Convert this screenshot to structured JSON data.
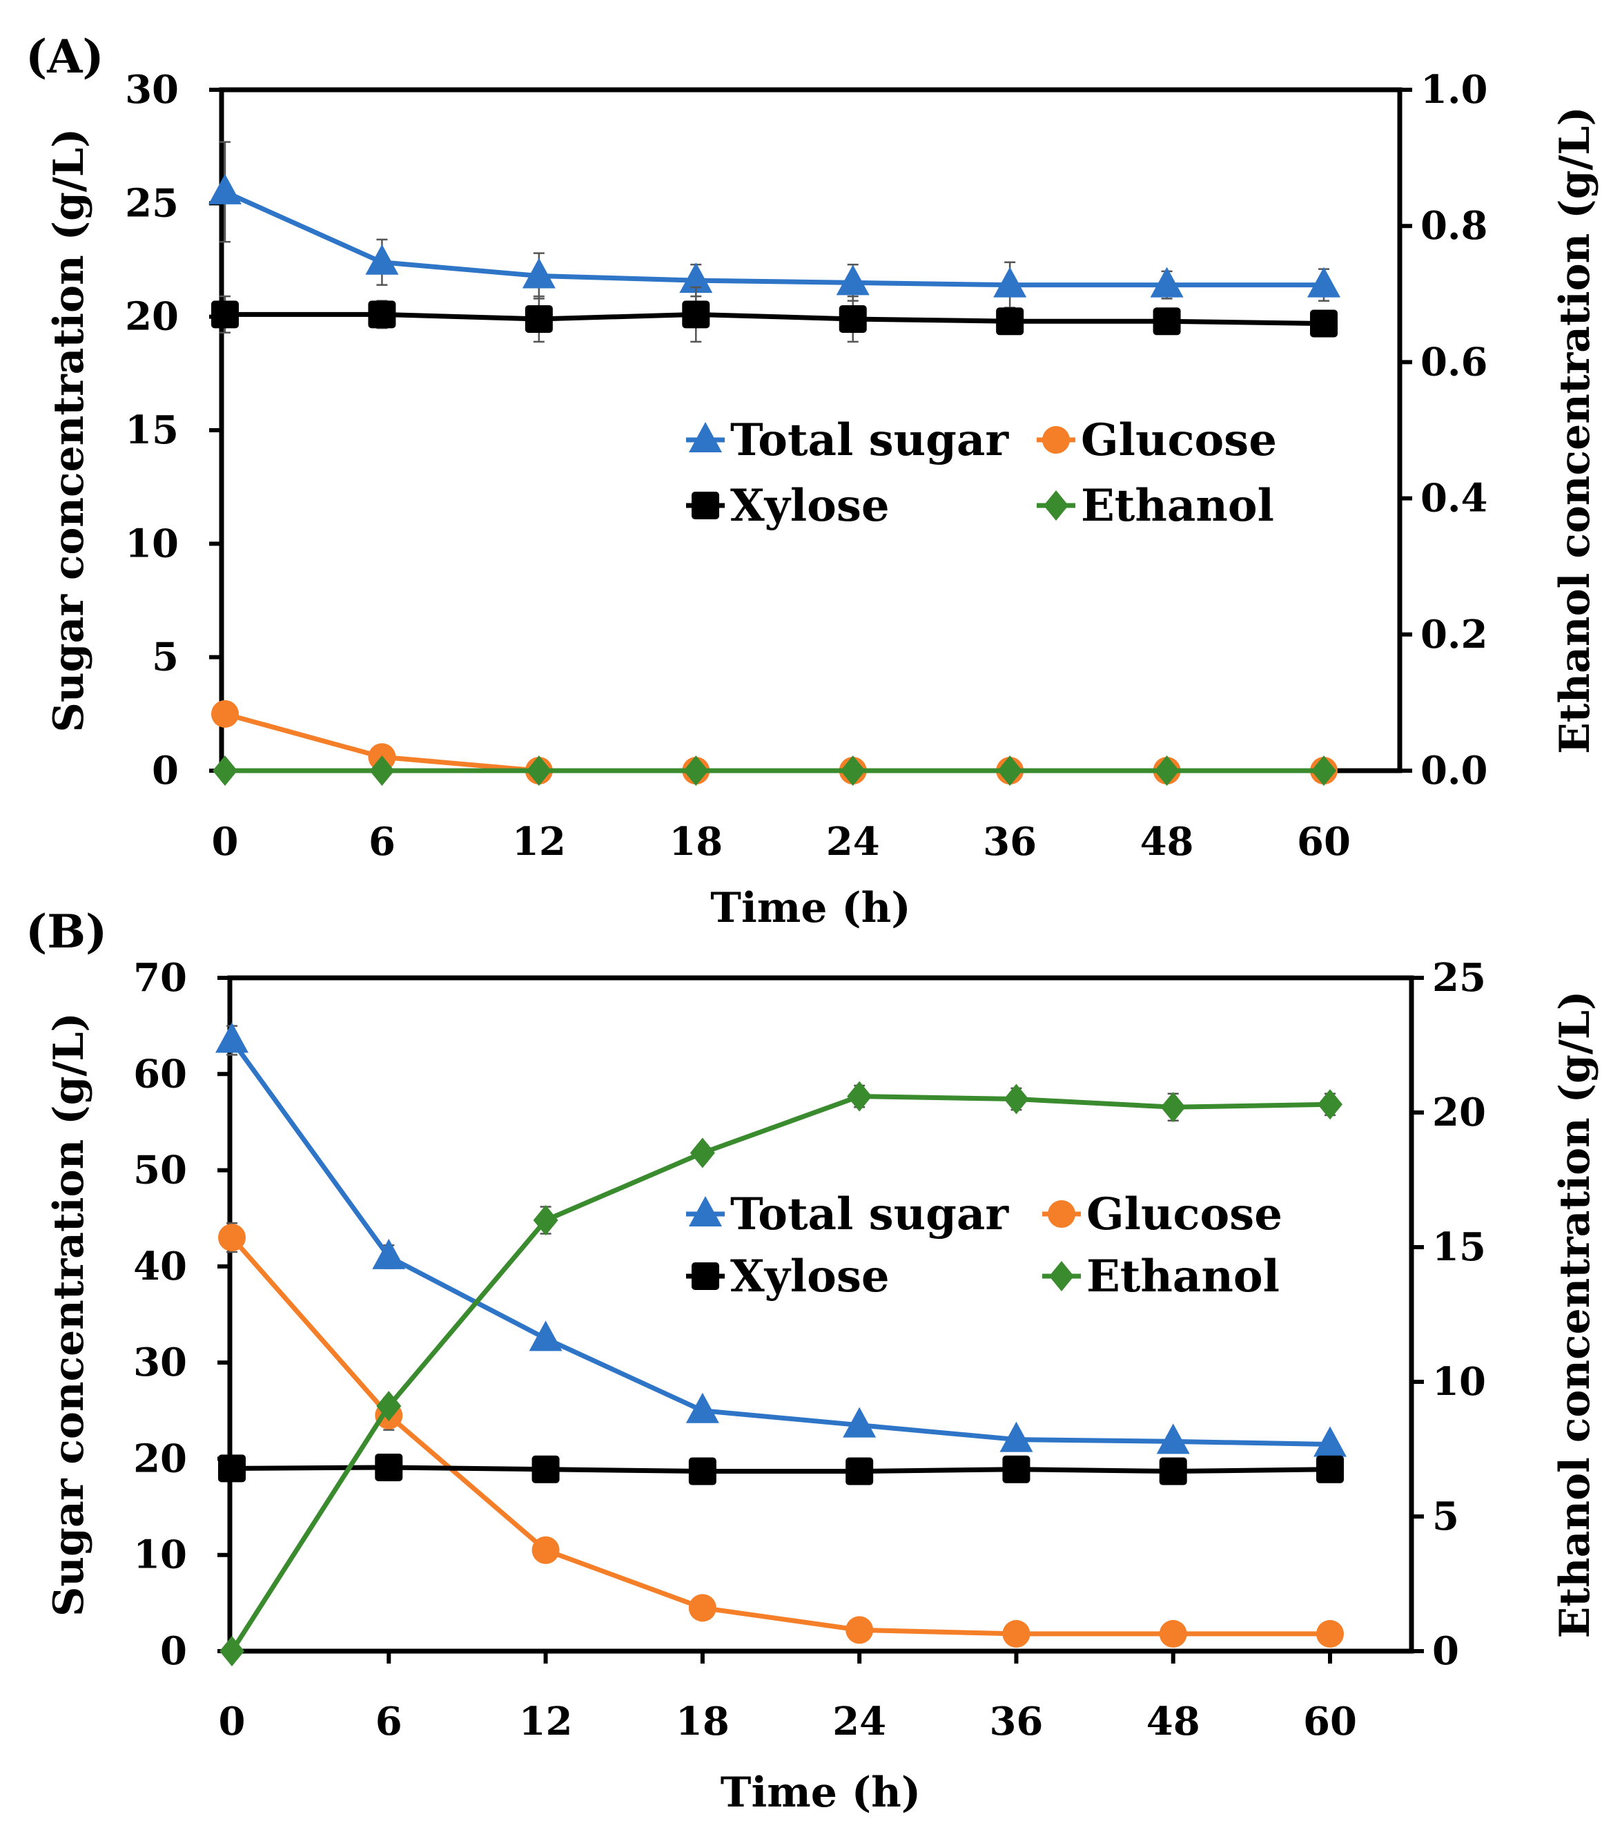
{
  "chart_data": [
    {
      "panel_label": "(A)",
      "type": "line",
      "categories": [
        "0",
        "6",
        "12",
        "18",
        "24",
        "36",
        "48",
        "60"
      ],
      "xlabel": "Time (h)",
      "ylabel": "Sugar concentration (g/L)",
      "y2label": "Ethanol concentration (g/L)",
      "ylim": [
        0,
        30
      ],
      "yticks": [
        "0",
        "5",
        "10",
        "15",
        "20",
        "25",
        "30"
      ],
      "y2lim": [
        0,
        1.0
      ],
      "y2ticks": [
        "0.0",
        "0.2",
        "0.4",
        "0.6",
        "0.8",
        "1.0"
      ],
      "legend_position": "center-right",
      "series": [
        {
          "name": "Total sugar",
          "axis": "left",
          "marker": "triangle",
          "color": "#2E75C8",
          "values": [
            25.5,
            22.4,
            21.8,
            21.6,
            21.5,
            21.4,
            21.4,
            21.4
          ],
          "error": [
            2.2,
            1.0,
            1.0,
            0.7,
            0.8,
            1.0,
            0.6,
            0.7
          ]
        },
        {
          "name": "Glucose",
          "axis": "left",
          "marker": "circle",
          "color": "#F47F28",
          "values": [
            2.5,
            0.6,
            0,
            0,
            0,
            0,
            0,
            0
          ],
          "error": [
            0,
            0,
            0,
            0,
            0,
            0,
            0,
            0
          ]
        },
        {
          "name": "Xylose",
          "axis": "left",
          "marker": "square",
          "color": "#000000",
          "values": [
            20.1,
            20.1,
            19.9,
            20.1,
            19.9,
            19.8,
            19.8,
            19.7
          ],
          "error": [
            0.8,
            0.6,
            1.0,
            1.2,
            1.0,
            0.3,
            0.3,
            0.4
          ]
        },
        {
          "name": "Ethanol",
          "axis": "right",
          "marker": "diamond",
          "color": "#3A8A2E",
          "values": [
            0,
            0,
            0,
            0,
            0,
            0,
            0,
            0
          ],
          "error": [
            0,
            0,
            0,
            0,
            0,
            0,
            0,
            0
          ]
        }
      ]
    },
    {
      "panel_label": "(B)",
      "type": "line",
      "categories": [
        "0",
        "6",
        "12",
        "18",
        "24",
        "36",
        "48",
        "60"
      ],
      "xlabel": "Time (h)",
      "ylabel": "Sugar concentration (g/L)",
      "y2label": "Ethanol concentration (g/L)",
      "ylim": [
        0,
        70
      ],
      "yticks": [
        "0",
        "10",
        "20",
        "30",
        "40",
        "50",
        "60",
        "70"
      ],
      "y2lim": [
        0,
        25
      ],
      "y2ticks": [
        "0",
        "5",
        "10",
        "15",
        "20",
        "25"
      ],
      "legend_position": "center-right",
      "series": [
        {
          "name": "Total sugar",
          "axis": "left",
          "marker": "triangle",
          "color": "#2E75C8",
          "values": [
            63.5,
            41.0,
            32.5,
            25.0,
            23.5,
            22.0,
            21.8,
            21.5
          ],
          "error": [
            1.5,
            1.2,
            0.5,
            0.5,
            0.5,
            0.5,
            0.5,
            0.5
          ]
        },
        {
          "name": "Glucose",
          "axis": "left",
          "marker": "circle",
          "color": "#F47F28",
          "values": [
            43.0,
            24.5,
            10.5,
            4.5,
            2.2,
            1.8,
            1.8,
            1.8
          ],
          "error": [
            1.5,
            1.5,
            0.3,
            0.3,
            0.3,
            0.3,
            0.3,
            0.3
          ]
        },
        {
          "name": "Xylose",
          "axis": "left",
          "marker": "square",
          "color": "#000000",
          "values": [
            19.0,
            19.1,
            18.9,
            18.7,
            18.7,
            18.9,
            18.7,
            18.9
          ],
          "error": [
            0.3,
            0.3,
            0.3,
            0.3,
            0.3,
            0.3,
            0.3,
            0.3
          ]
        },
        {
          "name": "Ethanol",
          "axis": "right",
          "marker": "diamond",
          "color": "#3A8A2E",
          "values": [
            0,
            9.1,
            16.0,
            18.5,
            20.6,
            20.5,
            20.2,
            20.3
          ],
          "error": [
            0.2,
            0.3,
            0.5,
            0.3,
            0.4,
            0.4,
            0.5,
            0.4
          ]
        }
      ]
    }
  ]
}
